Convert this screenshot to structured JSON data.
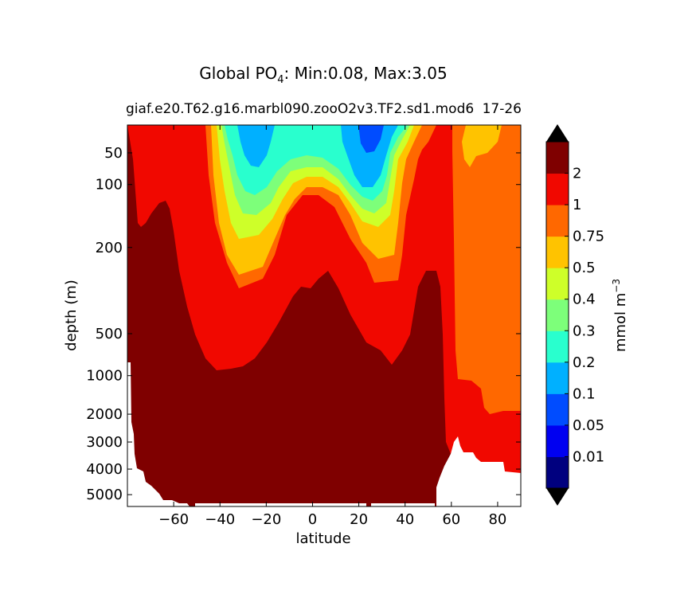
{
  "chart_data": {
    "type": "contour",
    "title": {
      "prefix": "Global PO",
      "subscript": "4",
      "suffix": ": Min:0.08, Max:3.05"
    },
    "subtitle": "giaf.e20.T62.g16.marbl090.zooO2v3.TF2.sd1.mod6",
    "subtitle_overlap": "17-26",
    "xlabel": "latitude",
    "ylabel": "depth (m)",
    "xlim": [
      -80,
      90
    ],
    "ylim": [
      5500,
      10
    ],
    "yscale": "log-like (depth)",
    "xticks": [
      -60,
      -40,
      -20,
      0,
      20,
      40,
      60,
      80
    ],
    "xtick_labels": [
      "−60",
      "−40",
      "−20",
      "0",
      "20",
      "40",
      "60",
      "80"
    ],
    "yticks": [
      50,
      100,
      200,
      500,
      1000,
      2000,
      3000,
      4000,
      5000
    ],
    "ytick_labels": [
      "50",
      "100",
      "200",
      "500",
      "1000",
      "2000",
      "3000",
      "4000",
      "5000"
    ],
    "colorbar": {
      "label_base": "mmol m",
      "label_exp": "−3",
      "extend": "both",
      "levels": [
        0.01,
        0.05,
        0.1,
        0.2,
        0.3,
        0.4,
        0.5,
        0.75,
        1,
        2
      ],
      "tick_labels": [
        "0.01",
        "0.05",
        "0.1",
        "0.2",
        "0.3",
        "0.4",
        "0.5",
        "0.75",
        "1",
        "2"
      ],
      "colors": [
        "#00007f",
        "#0000f1",
        "#004cff",
        "#00b0ff",
        "#29ffce",
        "#7dff7a",
        "#ceff29",
        "#ffc300",
        "#ff6800",
        "#f10800",
        "#7f0000"
      ],
      "over_color": "#000000",
      "under_color": "#000000"
    },
    "regions": [
      {
        "level": ">2",
        "description": "deep ocean below ~300-800 m"
      },
      {
        "level": "1-2",
        "description": "intermediate waters"
      },
      {
        "level": "0.75-1",
        "description": "Arctic / high northern latitudes"
      },
      {
        "level": "0.08-0.1",
        "description": "subtropical gyre surface minima near -25 and 25 latitude"
      }
    ]
  }
}
